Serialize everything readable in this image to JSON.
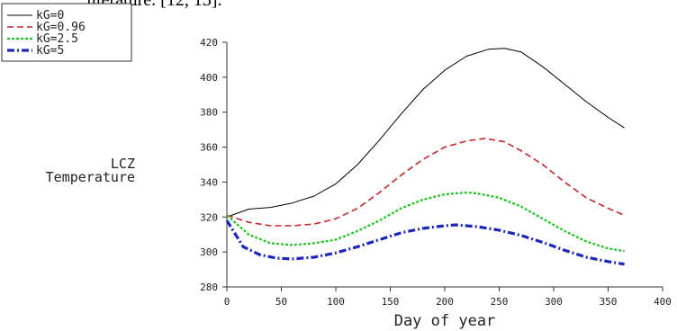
{
  "header": {
    "cut_text": "literature. [12, 13]."
  },
  "chart_data": {
    "type": "line",
    "title": "",
    "xlabel": "Day of year",
    "ylabel_lines": [
      "LCZ",
      "Temperature"
    ],
    "xlim": [
      0,
      400
    ],
    "ylim": [
      280,
      420
    ],
    "xticks": [
      0,
      50,
      100,
      150,
      200,
      250,
      300,
      350,
      400
    ],
    "yticks": [
      280,
      300,
      320,
      340,
      360,
      380,
      400,
      420
    ],
    "grid": false,
    "legend_position": "top-left",
    "series": [
      {
        "name": "kG=0",
        "color": "#000000",
        "dash": "solid",
        "x": [
          0,
          20,
          40,
          60,
          80,
          100,
          120,
          140,
          160,
          180,
          200,
          220,
          240,
          255,
          270,
          290,
          310,
          330,
          350,
          365
        ],
        "y": [
          320,
          324.5,
          325.5,
          328,
          332,
          339,
          350,
          364,
          379,
          393,
          404,
          412,
          416,
          416.5,
          414.5,
          406,
          396,
          386,
          377,
          371
        ]
      },
      {
        "name": "kG=0.96",
        "color": "#c0282b",
        "dash": "dash",
        "x": [
          0,
          20,
          40,
          60,
          80,
          100,
          120,
          140,
          160,
          180,
          200,
          220,
          237,
          255,
          270,
          290,
          310,
          330,
          350,
          365
        ],
        "y": [
          321,
          317,
          315,
          315,
          316,
          319,
          325,
          334,
          344,
          353,
          360,
          363.5,
          365,
          363,
          358,
          350,
          340,
          331,
          325,
          321
        ]
      },
      {
        "name": "kG=2.5",
        "color": "#22c222",
        "dash": "dot",
        "x": [
          0,
          20,
          40,
          60,
          80,
          100,
          120,
          140,
          160,
          180,
          200,
          220,
          230,
          250,
          270,
          290,
          310,
          330,
          350,
          365
        ],
        "y": [
          321,
          310,
          305,
          304,
          305,
          307,
          312,
          318,
          325,
          330,
          333,
          334,
          333.5,
          331,
          326,
          319,
          312,
          306,
          302,
          300.5
        ]
      },
      {
        "name": "kG=5",
        "color": "#1c27b8",
        "dash": "dashdot",
        "x": [
          0,
          15,
          30,
          45,
          60,
          80,
          100,
          120,
          140,
          160,
          180,
          200,
          210,
          230,
          250,
          270,
          290,
          310,
          330,
          350,
          365
        ],
        "y": [
          318,
          303,
          298.5,
          296.5,
          296,
          297,
          299.5,
          303,
          307,
          311,
          313.5,
          315,
          315.5,
          314.5,
          312.5,
          309.5,
          305.5,
          301,
          297,
          294.5,
          293
        ]
      }
    ]
  }
}
